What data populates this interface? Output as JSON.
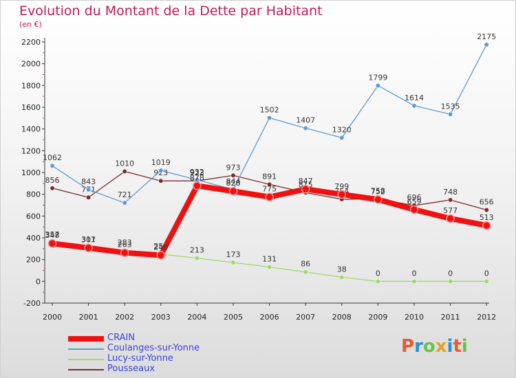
{
  "title": "Evolution du Montant de la Dette par Habitant",
  "unit_label": "(en €)",
  "logo": {
    "letters": [
      "P",
      "r",
      "o",
      "x",
      "i",
      "t",
      "i"
    ],
    "colors": [
      "#e65c2e",
      "#2a8fd6",
      "#6cc04a",
      "#e6a125",
      "#2a8fd6",
      "#e65c2e",
      "#6cc04a"
    ]
  },
  "chart_data": {
    "type": "line",
    "title": "Evolution du Montant de la Dette par Habitant",
    "ylabel": "(en €)",
    "xlabel": "",
    "ylim": [
      -200,
      2200
    ],
    "yticks": [
      -200,
      0,
      200,
      400,
      600,
      800,
      1000,
      1200,
      1400,
      1600,
      1800,
      2000,
      2200
    ],
    "categories": [
      "2000",
      "2001",
      "2002",
      "2003",
      "2004",
      "2005",
      "2006",
      "2007",
      "2008",
      "2009",
      "2010",
      "2011",
      "2012"
    ],
    "grid": false,
    "legend_position": "bottom-left",
    "series": [
      {
        "name": "Pousseaux",
        "color": "#7a2a2e",
        "values": [
          856,
          771,
          1010,
          923,
          923,
          973,
          891,
          815,
          754,
          758,
          696,
          748,
          656
        ]
      },
      {
        "name": "Coulanges-sur-Yonne",
        "color": "#5b9bd0",
        "values": [
          1062,
          843,
          721,
          1019,
          932,
          844,
          1502,
          1407,
          1320,
          1799,
          1614,
          1535,
          2175
        ]
      },
      {
        "name": "Lucy-sur-Yonne",
        "color": "#9fd86a",
        "values": [
          357,
          311,
          283,
          250,
          213,
          173,
          131,
          86,
          38,
          0,
          0,
          0,
          0
        ]
      },
      {
        "name": "CRAIN",
        "color": "#ee1111",
        "values": [
          348,
          307,
          263,
          240,
          878,
          828,
          775,
          847,
          799,
          752,
          659,
          577,
          513
        ]
      }
    ]
  }
}
